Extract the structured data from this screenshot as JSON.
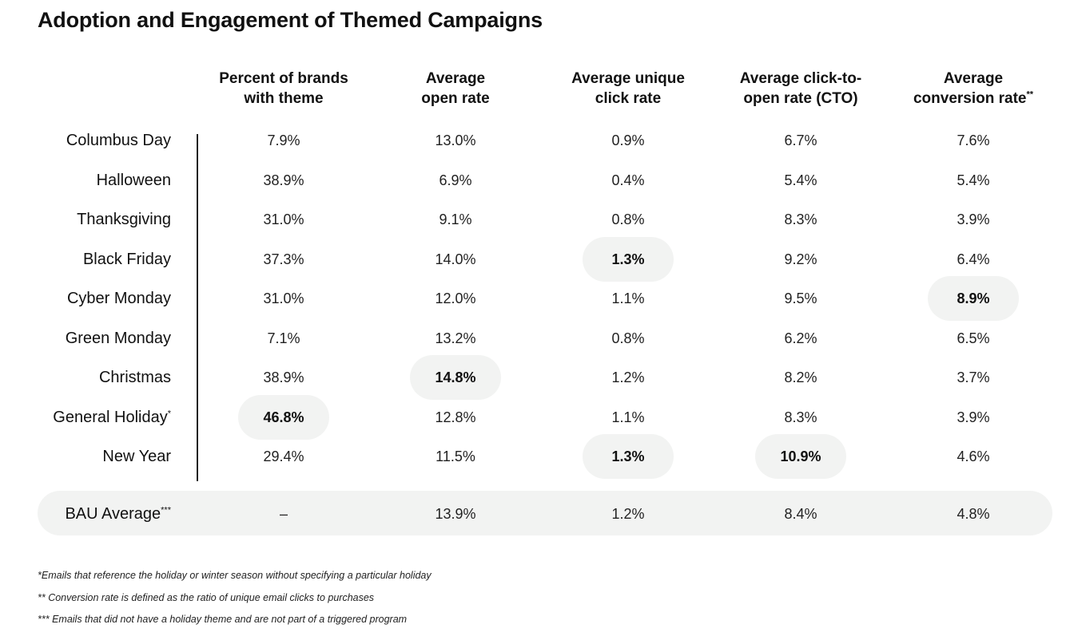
{
  "title": "Adoption and Engagement of Themed Campaigns",
  "columns": [
    {
      "line1": "Percent of brands",
      "line2": "with theme",
      "sup": ""
    },
    {
      "line1": "Average",
      "line2": "open rate",
      "sup": ""
    },
    {
      "line1": "Average unique",
      "line2": "click rate",
      "sup": ""
    },
    {
      "line1": "Average click-to-",
      "line2": "open rate (CTO)",
      "sup": ""
    },
    {
      "line1": "Average",
      "line2": "conversion rate",
      "sup": "**"
    }
  ],
  "rows": [
    {
      "label": "Columbus Day",
      "sup": "",
      "values": [
        "7.9%",
        "13.0%",
        "0.9%",
        "6.7%",
        "7.6%"
      ],
      "highlight": [
        false,
        false,
        false,
        false,
        false
      ]
    },
    {
      "label": "Halloween",
      "sup": "",
      "values": [
        "38.9%",
        "6.9%",
        "0.4%",
        "5.4%",
        "5.4%"
      ],
      "highlight": [
        false,
        false,
        false,
        false,
        false
      ]
    },
    {
      "label": "Thanksgiving",
      "sup": "",
      "values": [
        "31.0%",
        "9.1%",
        "0.8%",
        "8.3%",
        "3.9%"
      ],
      "highlight": [
        false,
        false,
        false,
        false,
        false
      ]
    },
    {
      "label": "Black Friday",
      "sup": "",
      "values": [
        "37.3%",
        "14.0%",
        "1.3%",
        "9.2%",
        "6.4%"
      ],
      "highlight": [
        false,
        false,
        true,
        false,
        false
      ]
    },
    {
      "label": "Cyber Monday",
      "sup": "",
      "values": [
        "31.0%",
        "12.0%",
        "1.1%",
        "9.5%",
        "8.9%"
      ],
      "highlight": [
        false,
        false,
        false,
        false,
        true
      ]
    },
    {
      "label": "Green Monday",
      "sup": "",
      "values": [
        "7.1%",
        "13.2%",
        "0.8%",
        "6.2%",
        "6.5%"
      ],
      "highlight": [
        false,
        false,
        false,
        false,
        false
      ]
    },
    {
      "label": "Christmas",
      "sup": "",
      "values": [
        "38.9%",
        "14.8%",
        "1.2%",
        "8.2%",
        "3.7%"
      ],
      "highlight": [
        false,
        true,
        false,
        false,
        false
      ]
    },
    {
      "label": "General Holiday",
      "sup": "*",
      "values": [
        "46.8%",
        "12.8%",
        "1.1%",
        "8.3%",
        "3.9%"
      ],
      "highlight": [
        true,
        false,
        false,
        false,
        false
      ]
    },
    {
      "label": "New Year",
      "sup": "",
      "values": [
        "29.4%",
        "11.5%",
        "1.3%",
        "10.9%",
        "4.6%"
      ],
      "highlight": [
        false,
        false,
        true,
        true,
        false
      ]
    }
  ],
  "bau": {
    "label": "BAU Average",
    "sup": "***",
    "values": [
      "–",
      "13.9%",
      "1.2%",
      "8.4%",
      "4.8%"
    ]
  },
  "footnotes": [
    "*Emails that reference the holiday or winter season without specifying a particular holiday",
    "** Conversion rate is defined as the ratio of unique email clicks to purchases",
    "*** Emails that did not have a holiday theme and are not part of a triggered program"
  ]
}
